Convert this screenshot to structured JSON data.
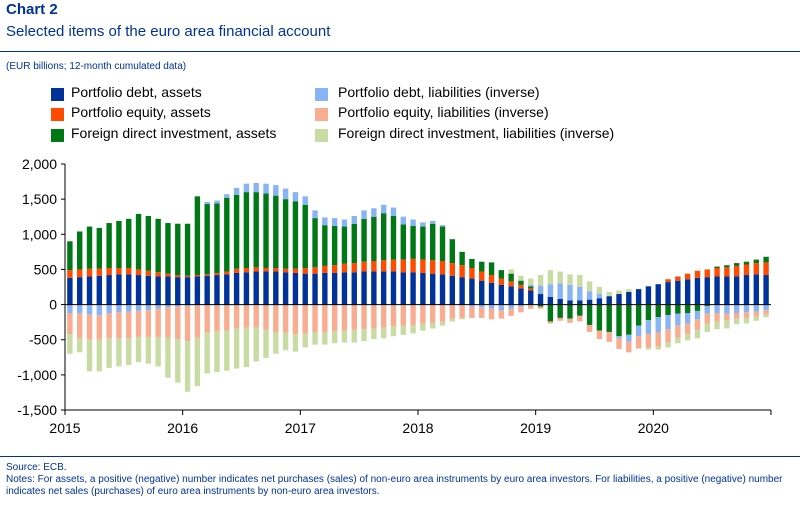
{
  "header": {
    "chart_number": "Chart 2",
    "title": "Selected items of the euro area financial account",
    "unit_note": "(EUR billions; 12-month cumulated data)"
  },
  "footer": {
    "source": "Source: ECB.",
    "notes": "Notes: For assets, a positive (negative) number indicates net purchases (sales) of non-euro area instruments by euro area investors. For liabilities, a positive (negative) number indicates net sales (purchases) of euro area instruments by non-euro area investors."
  },
  "colors": {
    "pd_assets": "#003299",
    "pe_assets": "#FF4B00",
    "fdi_assets": "#007816",
    "pd_liab": "#88B4F5",
    "pe_liab": "#F8AC90",
    "fdi_liab": "#C8DBA3",
    "axis": "#000000",
    "header_blue": "#003299"
  },
  "chart_data": {
    "type": "bar",
    "stacked": true,
    "start_month": "2015-01",
    "ylim": [
      -1500,
      2000
    ],
    "yticks": [
      -1500,
      -1000,
      -500,
      0,
      500,
      1000,
      1500,
      2000
    ],
    "ytick_labels": [
      "-1,500",
      "-1,000",
      "-500",
      "0",
      "500",
      "1,000",
      "1,500",
      "2,000"
    ],
    "xticks": [
      "2015",
      "2016",
      "2017",
      "2018",
      "2019",
      "2020"
    ],
    "grid": false,
    "legend": "top",
    "series": [
      {
        "key": "pd_assets",
        "name": "Portfolio debt, assets",
        "values": [
          380,
          390,
          400,
          410,
          420,
          430,
          430,
          420,
          410,
          400,
          400,
          390,
          390,
          400,
          410,
          420,
          430,
          450,
          460,
          470,
          470,
          470,
          460,
          450,
          440,
          440,
          450,
          450,
          460,
          460,
          470,
          470,
          470,
          470,
          460,
          460,
          450,
          440,
          430,
          410,
          390,
          370,
          340,
          310,
          280,
          260,
          230,
          200,
          150,
          110,
          80,
          60,
          60,
          70,
          90,
          120,
          150,
          180,
          220,
          260,
          290,
          320,
          340,
          360,
          380,
          390,
          400,
          400,
          400,
          420,
          430,
          420
        ]
      },
      {
        "key": "pe_assets",
        "name": "Portfolio equity, assets",
        "values": [
          110,
          110,
          110,
          100,
          100,
          90,
          90,
          80,
          70,
          60,
          40,
          30,
          20,
          20,
          20,
          30,
          40,
          60,
          60,
          60,
          50,
          50,
          50,
          60,
          80,
          90,
          100,
          110,
          120,
          130,
          140,
          150,
          160,
          170,
          180,
          190,
          190,
          190,
          190,
          180,
          170,
          150,
          130,
          110,
          90,
          70,
          50,
          30,
          0,
          0,
          0,
          0,
          0,
          0,
          0,
          0,
          0,
          0,
          0,
          0,
          0,
          40,
          60,
          80,
          100,
          110,
          120,
          130,
          150,
          150,
          160,
          180
        ]
      },
      {
        "key": "fdi_assets",
        "name": "Foreign direct investment, assets",
        "values": [
          410,
          540,
          600,
          580,
          640,
          670,
          700,
          790,
          780,
          760,
          720,
          730,
          740,
          1120,
          1000,
          990,
          1050,
          1050,
          1080,
          1070,
          1060,
          1030,
          990,
          960,
          900,
          700,
          580,
          560,
          530,
          560,
          610,
          630,
          670,
          620,
          500,
          470,
          470,
          520,
          490,
          340,
          190,
          130,
          140,
          180,
          120,
          110,
          60,
          30,
          -30,
          -240,
          -190,
          -200,
          -160,
          -290,
          -370,
          -390,
          -450,
          -430,
          -300,
          -220,
          -180,
          -150,
          -130,
          -120,
          -90,
          -20,
          20,
          30,
          40,
          40,
          50,
          80
        ]
      },
      {
        "key": "pd_liab",
        "name": "Portfolio debt, liabilities (inverse)",
        "values": [
          -120,
          -130,
          -140,
          -150,
          -120,
          -110,
          -100,
          -90,
          -80,
          -60,
          -40,
          -30,
          -20,
          0,
          30,
          40,
          50,
          100,
          120,
          130,
          140,
          150,
          150,
          130,
          120,
          110,
          110,
          110,
          100,
          110,
          120,
          120,
          120,
          120,
          110,
          90,
          60,
          40,
          20,
          0,
          -10,
          -30,
          -40,
          -60,
          -80,
          -60,
          -30,
          20,
          120,
          180,
          220,
          220,
          190,
          120,
          60,
          0,
          -30,
          -100,
          -150,
          -200,
          -220,
          -200,
          -170,
          -150,
          -120,
          -110,
          -120,
          -130,
          -120,
          -110,
          -100,
          -80
        ]
      },
      {
        "key": "pe_liab",
        "name": "Portfolio equity, liabilities (inverse)",
        "values": [
          -300,
          -350,
          -360,
          -350,
          -360,
          -370,
          -380,
          -370,
          -380,
          -400,
          -430,
          -460,
          -500,
          -470,
          -400,
          -380,
          -370,
          -340,
          -330,
          -330,
          -360,
          -390,
          -400,
          -420,
          -410,
          -390,
          -390,
          -380,
          -370,
          -360,
          -350,
          -340,
          -330,
          -310,
          -300,
          -290,
          -270,
          -260,
          -240,
          -200,
          -180,
          -160,
          -150,
          -150,
          -120,
          -100,
          -80,
          -60,
          -30,
          -30,
          -40,
          -60,
          -80,
          -100,
          -120,
          -140,
          -150,
          -150,
          -170,
          -190,
          -200,
          -190,
          -170,
          -150,
          -150,
          -140,
          -120,
          -100,
          -80,
          -80,
          -70,
          -60
        ]
      },
      {
        "key": "fdi_liab",
        "name": "Foreign direct investment, liabilities (inverse)",
        "values": [
          -280,
          -200,
          -450,
          -450,
          -420,
          -400,
          -380,
          -360,
          -380,
          -420,
          -570,
          -620,
          -720,
          -690,
          -580,
          -580,
          -570,
          -570,
          -560,
          -480,
          -400,
          -310,
          -250,
          -250,
          -200,
          -180,
          -180,
          -170,
          -170,
          -180,
          -170,
          -150,
          -150,
          -140,
          -130,
          -120,
          -100,
          -80,
          -60,
          -40,
          -20,
          0,
          0,
          0,
          0,
          60,
          70,
          90,
          150,
          200,
          170,
          150,
          170,
          140,
          100,
          60,
          50,
          40,
          -10,
          -30,
          -40,
          -70,
          -80,
          -90,
          -120,
          -120,
          -110,
          -110,
          -80,
          -80,
          -60,
          -40
        ]
      }
    ]
  }
}
